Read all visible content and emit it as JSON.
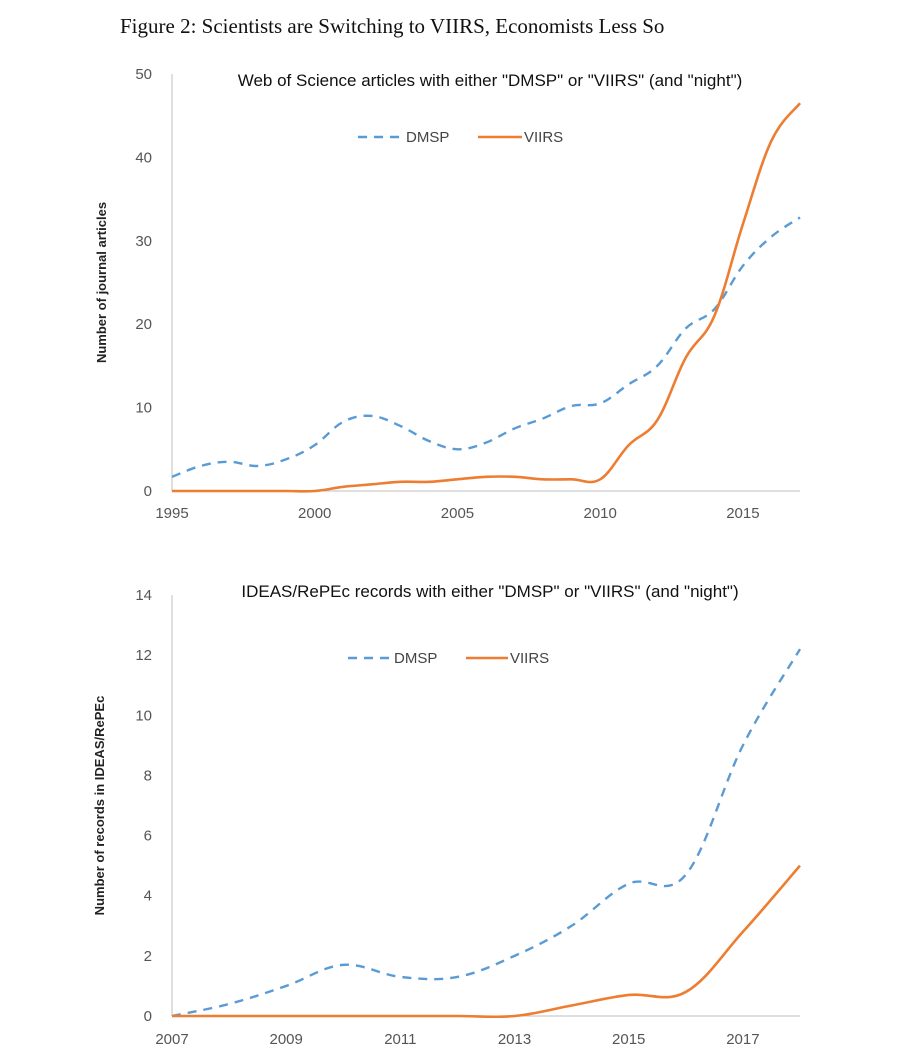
{
  "figure_title": "Figure 2: Scientists are Switching to VIIRS, Economists Less So",
  "colors": {
    "dmsp": "#5b9bd5",
    "viirs": "#ed7d31",
    "axis": "#bfbfbf"
  },
  "chart_data": [
    {
      "type": "line",
      "title": "Web of Science articles with either \"DMSP\" or \"VIIRS\" (and \"night\")",
      "xlabel": "",
      "ylabel": "Number of journal articles",
      "xlim": [
        1995,
        2017
      ],
      "ylim": [
        0,
        50
      ],
      "xticks": [
        1995,
        2000,
        2005,
        2010,
        2015
      ],
      "yticks": [
        0,
        10,
        20,
        30,
        40,
        50
      ],
      "legend": "top-center",
      "grid": false,
      "x": [
        1995,
        1996,
        1997,
        1998,
        1999,
        2000,
        2001,
        2002,
        2003,
        2004,
        2005,
        2006,
        2007,
        2008,
        2009,
        2010,
        2011,
        2012,
        2013,
        2014,
        2015,
        2016,
        2017
      ],
      "series": [
        {
          "name": "DMSP",
          "style": "dashed",
          "values": [
            1.7,
            3,
            3.5,
            3,
            3.8,
            5.5,
            8.3,
            9,
            7.8,
            6,
            5,
            5.8,
            7.5,
            8.7,
            10.2,
            10.5,
            12.8,
            15,
            19.5,
            21.8,
            27,
            30.5,
            32.8
          ]
        },
        {
          "name": "VIIRS",
          "style": "solid",
          "values": [
            0,
            0,
            0,
            0,
            0,
            0,
            0.5,
            0.8,
            1.1,
            1.1,
            1.4,
            1.7,
            1.7,
            1.4,
            1.4,
            1.4,
            5.5,
            8.5,
            16,
            21,
            32,
            42,
            46.5
          ]
        }
      ]
    },
    {
      "type": "line",
      "title": "IDEAS/RePEc records with either \"DMSP\" or \"VIIRS\" (and \"night\")",
      "xlabel": "",
      "ylabel": "Number of records in IDEAS/RePEc",
      "xlim": [
        2007,
        2018
      ],
      "ylim": [
        0,
        14
      ],
      "xticks": [
        2007,
        2009,
        2011,
        2013,
        2015,
        2017
      ],
      "yticks": [
        0,
        2,
        4,
        6,
        8,
        10,
        12,
        14
      ],
      "legend": "top-center",
      "grid": false,
      "x": [
        2007,
        2008,
        2009,
        2010,
        2011,
        2012,
        2013,
        2014,
        2015,
        2016,
        2017,
        2018
      ],
      "series": [
        {
          "name": "DMSP",
          "style": "dashed",
          "values": [
            0,
            0.4,
            1,
            1.7,
            1.3,
            1.3,
            2,
            3,
            4.4,
            4.7,
            9,
            12.2
          ]
        },
        {
          "name": "VIIRS",
          "style": "solid",
          "values": [
            0,
            0,
            0,
            0,
            0,
            0,
            0,
            0.35,
            0.7,
            0.8,
            2.8,
            5
          ]
        }
      ]
    }
  ]
}
